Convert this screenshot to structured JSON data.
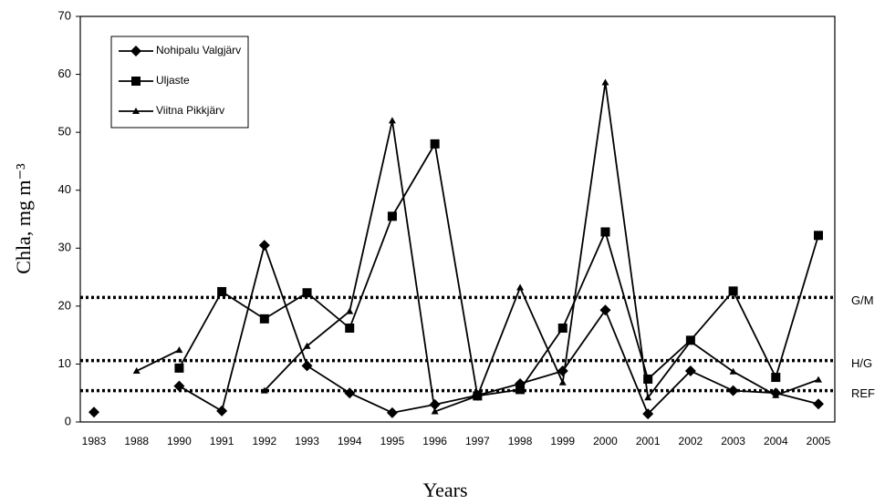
{
  "chart_data": {
    "type": "line",
    "x_label": "Years",
    "y_label": "Chla, mg m⁻³",
    "categories": [
      "1983",
      "1988",
      "1990",
      "1991",
      "1992",
      "1993",
      "1994",
      "1995",
      "1996",
      "1997",
      "1998",
      "1999",
      "2000",
      "2001",
      "2002",
      "2003",
      "2004",
      "2005"
    ],
    "series": [
      {
        "name": "Nohipalu Valgjärv",
        "color": "#000000",
        "marker": "diamond",
        "values": [
          1.7,
          null,
          6.2,
          1.9,
          30.5,
          9.7,
          5.0,
          1.6,
          3.0,
          4.6,
          6.6,
          8.8,
          19.3,
          1.4,
          8.8,
          5.4,
          5.0,
          3.1
        ]
      },
      {
        "name": "Uljaste",
        "color": "#000000",
        "marker": "square",
        "values": [
          null,
          null,
          9.3,
          22.5,
          17.8,
          22.3,
          16.2,
          35.5,
          48,
          4.5,
          5.6,
          16.2,
          32.8,
          7.4,
          14.1,
          22.6,
          7.7,
          32.2
        ]
      },
      {
        "name": "Viitna Pikkjärv",
        "color": "#000000",
        "marker": "triangle",
        "values": [
          null,
          8.8,
          12.4,
          null,
          5.4,
          13.1,
          19.1,
          52,
          1.8,
          4.5,
          23.2,
          6.8,
          58.6,
          4.2,
          13.9,
          8.7,
          4.6,
          7.3
        ]
      }
    ],
    "reference_lines": [
      {
        "label": "G/M",
        "value": 21.5
      },
      {
        "label": "H/G",
        "value": 10.6
      },
      {
        "label": "REF",
        "value": 5.4
      }
    ],
    "ylim": [
      0,
      70
    ],
    "yticks": [
      0,
      10,
      20,
      30,
      40,
      50,
      60,
      70
    ]
  }
}
